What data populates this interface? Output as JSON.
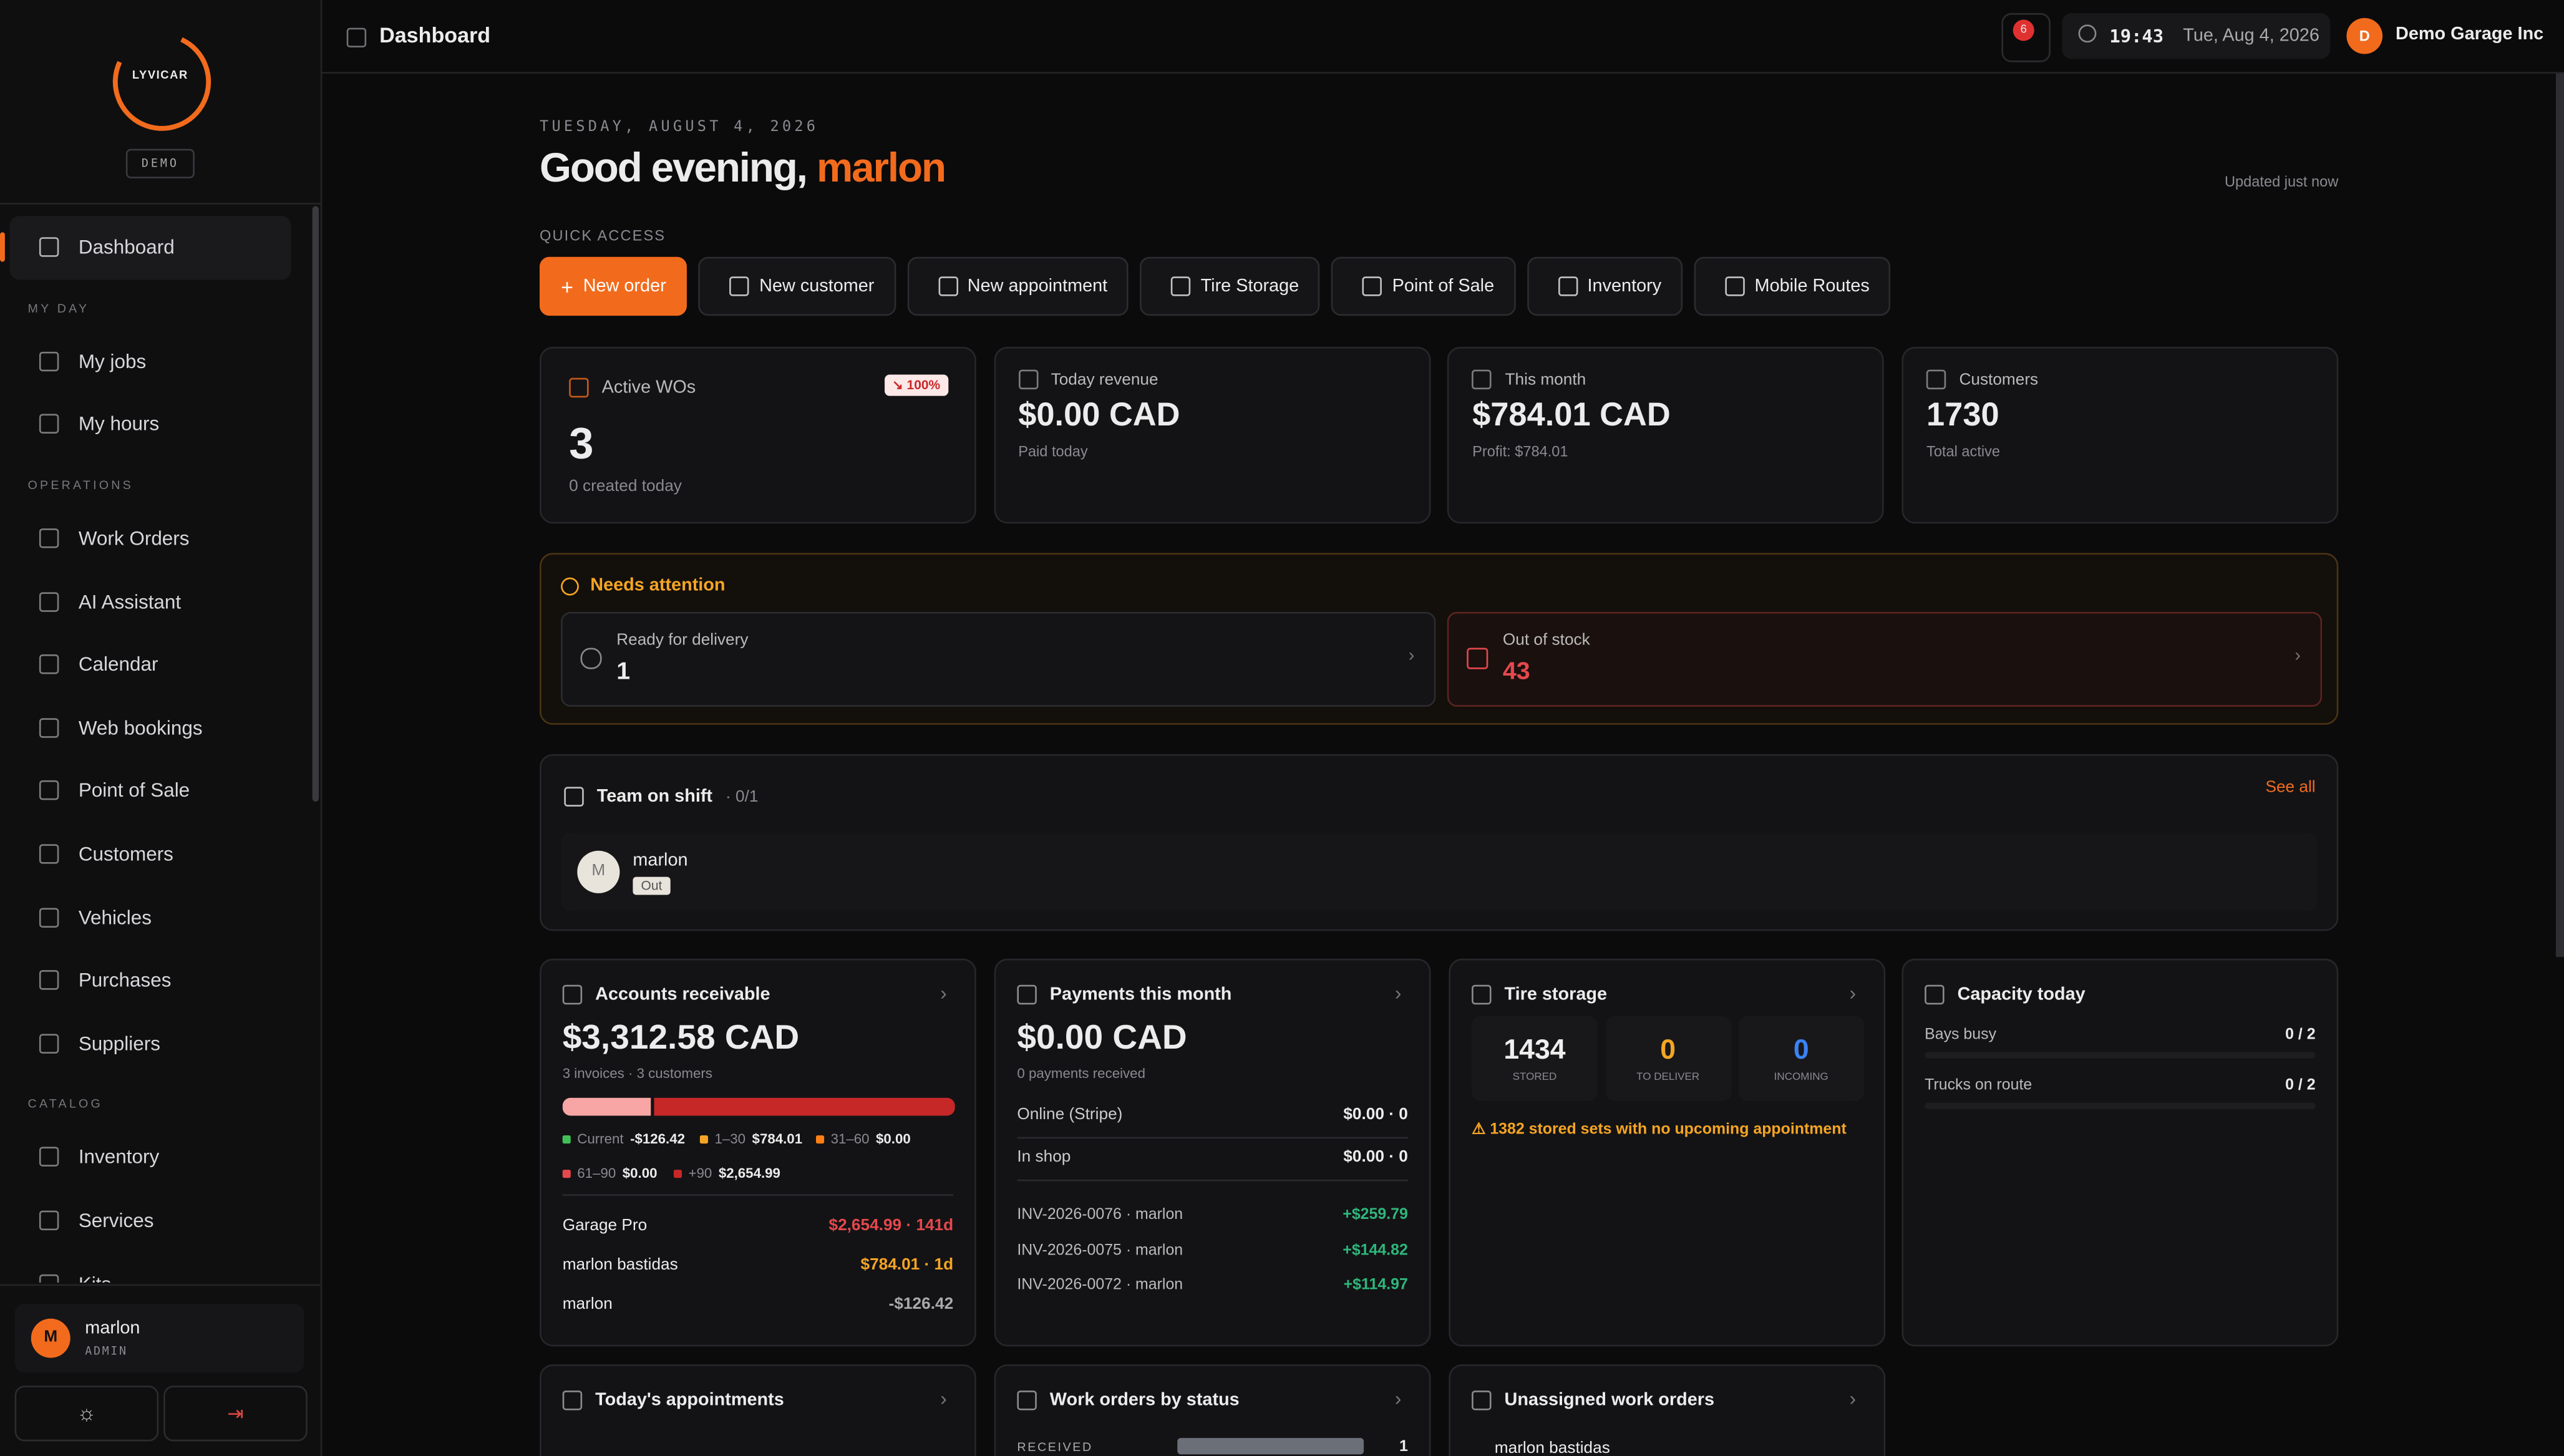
{
  "sidebar": {
    "logo": "LYVICAR",
    "badge": "DEMO",
    "active": "Dashboard",
    "sections": [
      {
        "title": "MY DAY",
        "items": [
          "My jobs",
          "My hours"
        ]
      },
      {
        "title": "OPERATIONS",
        "items": [
          "Work Orders",
          "AI Assistant",
          "Calendar",
          "Web bookings",
          "Point of Sale",
          "Customers",
          "Vehicles",
          "Purchases",
          "Suppliers"
        ]
      },
      {
        "title": "CATALOG",
        "items": [
          "Inventory",
          "Services",
          "Kits"
        ]
      }
    ],
    "user": {
      "initial": "M",
      "name": "marlon",
      "role": "ADMIN"
    }
  },
  "topbar": {
    "title": "Dashboard",
    "notifications": "6",
    "time": "19:43",
    "date": "Tue, Aug 4, 2026",
    "org_initial": "D",
    "org_name": "Demo Garage Inc"
  },
  "header": {
    "date": "TUESDAY, AUGUST 4, 2026",
    "greeting": "Good evening,",
    "name": "marlon",
    "updated": "Updated just now"
  },
  "quick_access": {
    "label": "QUICK ACCESS",
    "buttons": [
      "New order",
      "New customer",
      "New appointment",
      "Tire Storage",
      "Point of Sale",
      "Inventory",
      "Mobile Routes"
    ]
  },
  "stats": [
    {
      "label": "Active WOs",
      "value": "3",
      "sub": "0 created today",
      "badge": "↘ 100%"
    },
    {
      "label": "Today revenue",
      "value": "$0.00 CAD",
      "sub": "Paid today"
    },
    {
      "label": "This month",
      "value": "$784.01 CAD",
      "sub": "Profit: $784.01"
    },
    {
      "label": "Customers",
      "value": "1730",
      "sub": "Total active"
    }
  ],
  "attention": {
    "title": "Needs attention",
    "items": [
      {
        "label": "Ready for delivery",
        "value": "1"
      },
      {
        "label": "Out of stock",
        "value": "43"
      }
    ]
  },
  "team": {
    "title": "Team on shift",
    "count": "· 0/1",
    "see_all": "See all",
    "members": [
      {
        "initial": "M",
        "name": "marlon",
        "status": "Out"
      }
    ]
  },
  "receivable": {
    "title": "Accounts receivable",
    "amount": "$3,312.58 CAD",
    "sub": "3 invoices · 3 customers",
    "legend": [
      {
        "label": "Current",
        "value": "-$126.42"
      },
      {
        "label": "1–30",
        "value": "$784.01"
      },
      {
        "label": "31–60",
        "value": "$0.00"
      },
      {
        "label": "61–90",
        "value": "$0.00"
      },
      {
        "label": "+90",
        "value": "$2,654.99"
      }
    ],
    "rows": [
      {
        "name": "Garage Pro",
        "value": "$2,654.99 · 141d"
      },
      {
        "name": "marlon bastidas",
        "value": "$784.01 · 1d"
      },
      {
        "name": "marlon",
        "value": "-$126.42"
      }
    ]
  },
  "payments": {
    "title": "Payments this month",
    "amount": "$0.00 CAD",
    "sub": "0 payments received",
    "methods": [
      {
        "name": "Online (Stripe)",
        "value": "$0.00 · 0"
      },
      {
        "name": "In shop",
        "value": "$0.00 · 0"
      }
    ],
    "invoices": [
      {
        "name": "INV-2026-0076 · marlon",
        "value": "+$259.79"
      },
      {
        "name": "INV-2026-0075 · marlon",
        "value": "+$144.82"
      },
      {
        "name": "INV-2026-0072 · marlon",
        "value": "+$114.97"
      }
    ]
  },
  "tire_storage": {
    "title": "Tire storage",
    "stats": [
      {
        "value": "1434",
        "label": "STORED"
      },
      {
        "value": "0",
        "label": "TO DELIVER"
      },
      {
        "value": "0",
        "label": "INCOMING"
      }
    ],
    "warning": "⚠ 1382 stored sets with no upcoming appointment"
  },
  "capacity": {
    "title": "Capacity today",
    "rows": [
      {
        "label": "Bays busy",
        "value": "0 / 2"
      },
      {
        "label": "Trucks on route",
        "value": "0 / 2"
      }
    ]
  },
  "bottom": [
    {
      "title": "Today's appointments"
    },
    {
      "title": "Work orders by status",
      "rows": [
        {
          "label": "RECEIVED",
          "value": "1"
        }
      ]
    },
    {
      "title": "Unassigned work orders",
      "rows": [
        {
          "label": "marlon bastidas"
        }
      ]
    }
  ]
}
